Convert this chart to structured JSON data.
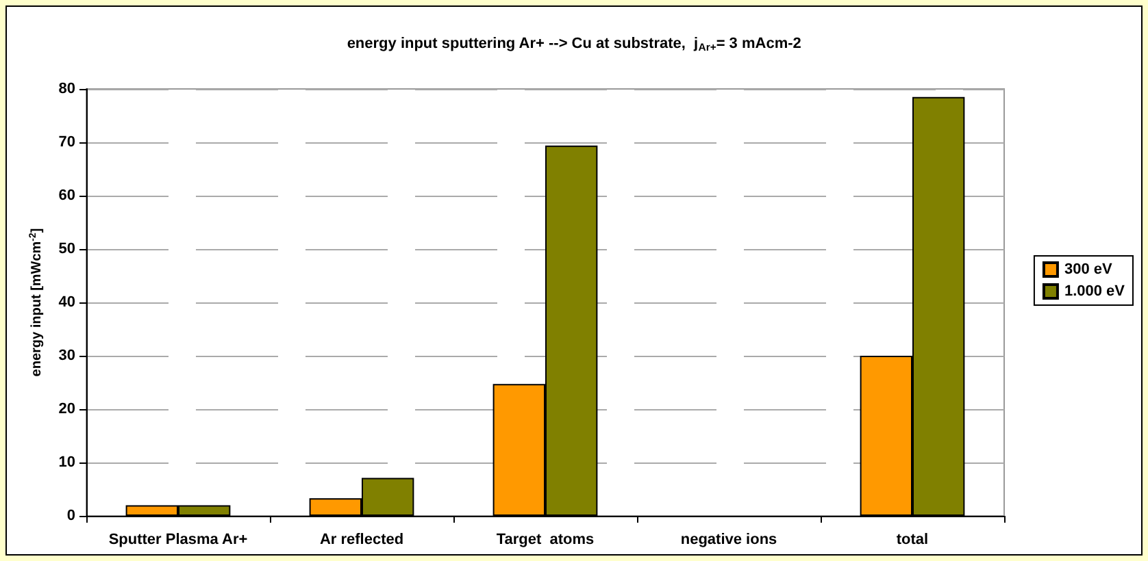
{
  "chart_data": {
    "type": "bar",
    "title": "energy input sputtering Ar+ --> Cu at substrate,  j$_{Ar+}$= 3 mAcm-2",
    "ylabel": "energy input [mWcm$^{-2}$]",
    "categories": [
      "Sputter Plasma Ar+",
      "Ar reflected",
      "Target  atoms",
      "negative ions",
      "total"
    ],
    "series": [
      {
        "name": "300 eV",
        "color": "#ff9900",
        "values": [
          2,
          3.3,
          24.7,
          0,
          30
        ]
      },
      {
        "name": "1.000 eV",
        "color": "#808000",
        "values": [
          2,
          7.1,
          69.4,
          0,
          78.5
        ]
      }
    ],
    "ylim": [
      0,
      80
    ],
    "yticks": [
      0,
      10,
      20,
      30,
      40,
      50,
      60,
      70,
      80
    ],
    "grid": "y",
    "legend": "right"
  }
}
